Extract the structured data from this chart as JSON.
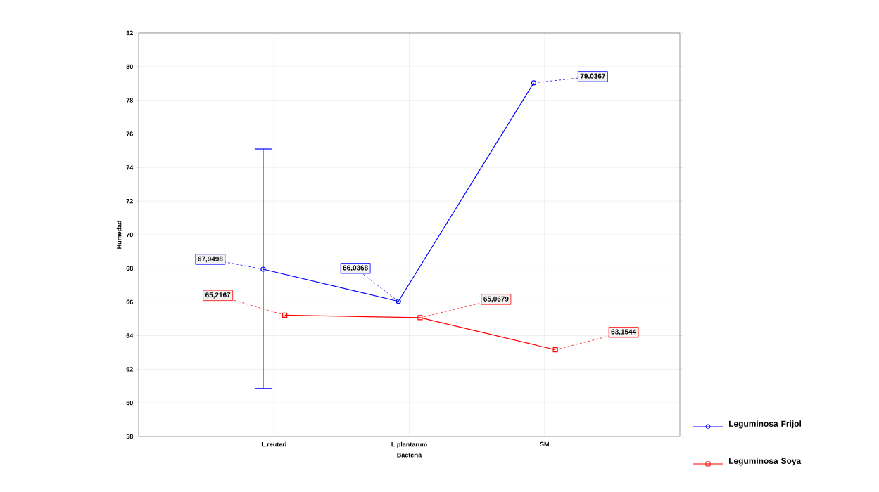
{
  "chart_data": {
    "type": "line",
    "xlabel": "Bacteria",
    "ylabel": "Humedad",
    "categories": [
      "L.reuteri",
      "L.plantarum",
      "SM"
    ],
    "series": [
      {
        "name": "Leguminosa Frijol",
        "color": "#0000ff",
        "marker": "circle",
        "values": [
          67.9498,
          66.0368,
          79.0367
        ],
        "value_labels": [
          "67,9498",
          "66,0368",
          "79,0367"
        ],
        "errors": [
          [
            60.85,
            75.1
          ],
          null,
          null
        ]
      },
      {
        "name": "Leguminosa Soya",
        "color": "#ff0000",
        "marker": "square",
        "values": [
          65.2167,
          65.0679,
          63.1544
        ],
        "value_labels": [
          "65,2167",
          "65,0679",
          "63,1544"
        ]
      }
    ],
    "ylim": [
      58,
      82
    ],
    "yticks": [
      58,
      60,
      62,
      64,
      66,
      68,
      70,
      72,
      74,
      76,
      78,
      80,
      82
    ],
    "grid": true,
    "legend": "bottom right",
    "line_style": "solid"
  }
}
